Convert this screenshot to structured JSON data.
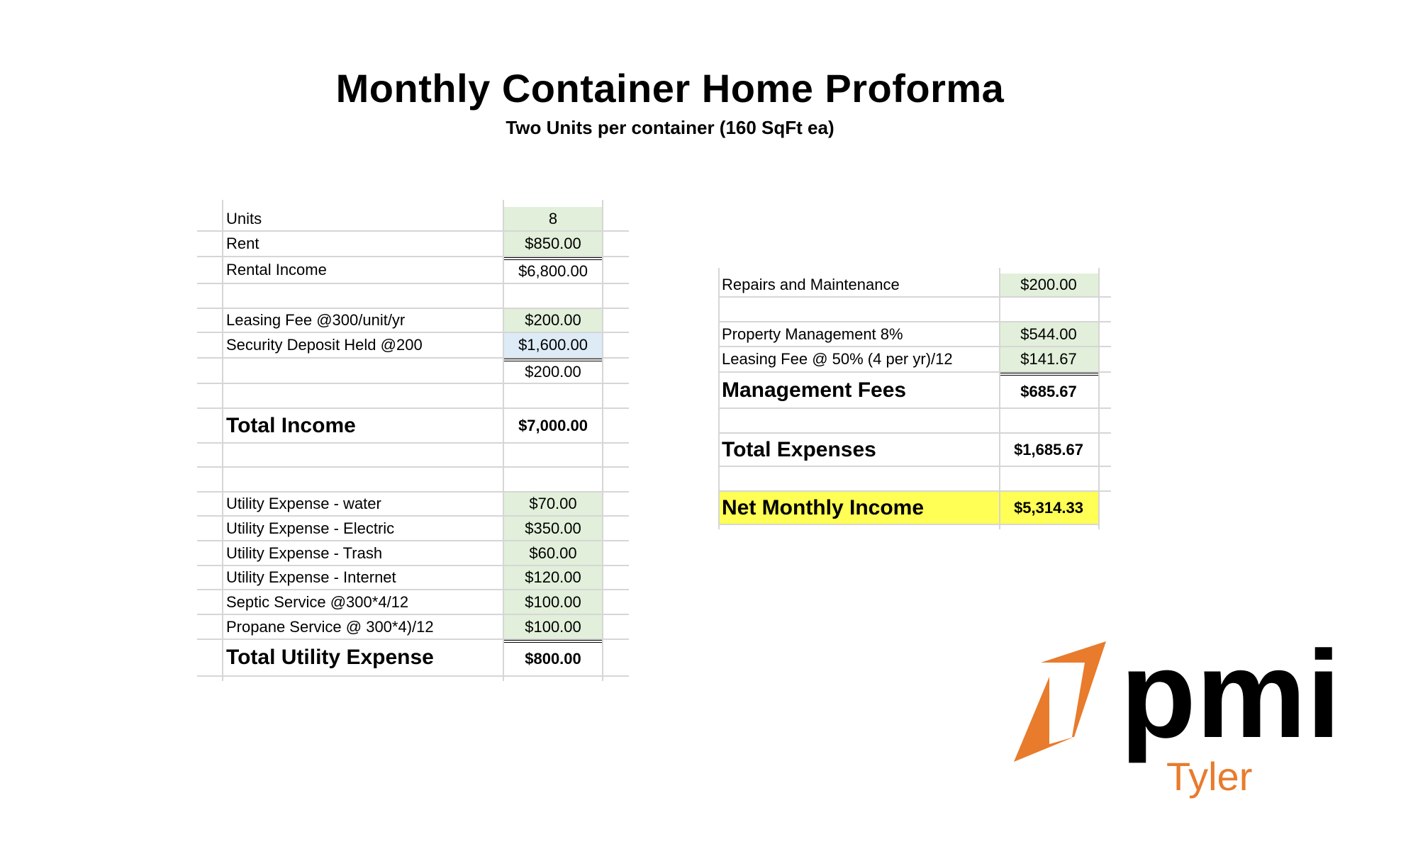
{
  "header": {
    "title": "Monthly Container Home Proforma",
    "subtitle": "Two Units per container (160  SqFt ea)"
  },
  "colors": {
    "input_green": "#e2efda",
    "input_blue": "#ddebf7",
    "highlight_yellow": "#ffff55",
    "brand_orange": "#e87b2c"
  },
  "income_table": {
    "rows": [
      {
        "label": "Units",
        "value": "8",
        "fill": "green"
      },
      {
        "label": "Rent",
        "value": "$850.00",
        "fill": "green"
      },
      {
        "label": "Rental Income",
        "value": "$6,800.00",
        "double_top": true
      },
      {
        "label": "",
        "value": ""
      },
      {
        "label": "Leasing Fee @300/unit/yr",
        "value": "$200.00",
        "fill": "green"
      },
      {
        "label": "Security Deposit Held @200",
        "value": "$1,600.00",
        "fill": "blue"
      },
      {
        "label": "",
        "value": "$200.00",
        "double_top": true
      },
      {
        "label": "",
        "value": ""
      },
      {
        "label": "Total Income",
        "value": "$7,000.00",
        "bold": true
      },
      {
        "label": "",
        "value": ""
      },
      {
        "label": "",
        "value": ""
      },
      {
        "label": "Utility Expense - water",
        "value": "$70.00",
        "fill": "green"
      },
      {
        "label": "Utility Expense - Electric",
        "value": "$350.00",
        "fill": "green"
      },
      {
        "label": "Utility Expense - Trash",
        "value": "$60.00",
        "fill": "green"
      },
      {
        "label": "Utility Expense - Internet",
        "value": "$120.00",
        "fill": "green"
      },
      {
        "label": "Septic Service @300*4/12",
        "value": "$100.00",
        "fill": "green"
      },
      {
        "label": "Propane Service @ 300*4)/12",
        "value": "$100.00",
        "fill": "green"
      },
      {
        "label": "Total Utility Expense",
        "value": "$800.00",
        "bold": true,
        "double_top": true
      }
    ]
  },
  "expense_table": {
    "rows": [
      {
        "label": "Repairs and Maintenance",
        "value": "$200.00",
        "fill": "green"
      },
      {
        "label": "",
        "value": ""
      },
      {
        "label": "Property Management 8%",
        "value": "$544.00",
        "fill": "green"
      },
      {
        "label": "Leasing Fee @ 50% (4 per yr)/12",
        "value": "$141.67",
        "fill": "green"
      },
      {
        "label": "Management Fees",
        "value": "$685.67",
        "bold": true,
        "double_top": true
      },
      {
        "label": "",
        "value": ""
      },
      {
        "label": "Total Expenses",
        "value": "$1,685.67",
        "bold": true
      },
      {
        "label": "",
        "value": ""
      },
      {
        "label": "Net Monthly Income",
        "value": "$5,314.33",
        "bold": true,
        "fill_row": "yellow"
      }
    ]
  },
  "logo": {
    "brand": "pmi",
    "location": "Tyler"
  }
}
